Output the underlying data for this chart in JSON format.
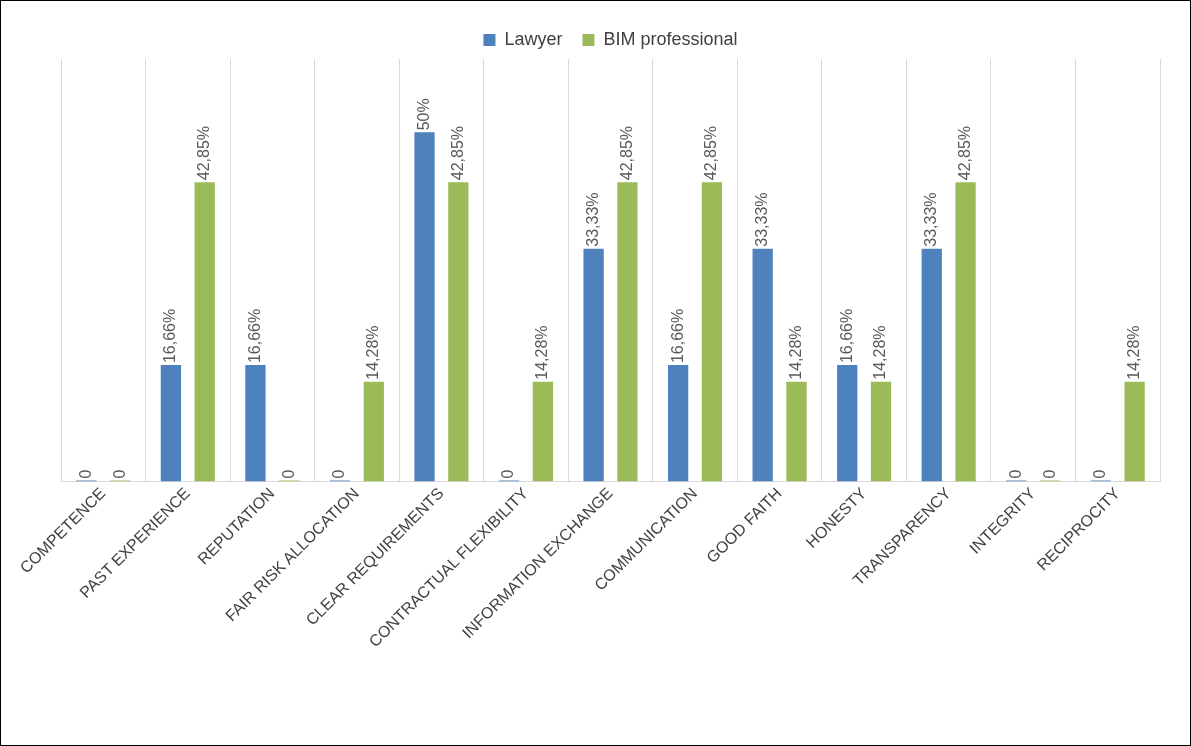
{
  "chart_data": {
    "type": "bar",
    "categories": [
      "COMPETENCE",
      "PAST EXPERIENCE",
      "REPUTATION",
      "FAIR RISK ALLOCATION",
      "CLEAR REQUIREMENTS",
      "CONTRACTUAL FLEXIBILITY",
      "INFORMATION EXCHANGE",
      "COMMUNICATION",
      "GOOD FAITH",
      "HONESTY",
      "TRANSPARENCY",
      "INTEGRITY",
      "RECIPROCITY"
    ],
    "series": [
      {
        "name": "Lawyer",
        "color": "#4f81bd",
        "values": [
          0,
          16.66,
          16.66,
          0,
          50,
          0,
          33.33,
          16.66,
          33.33,
          16.66,
          33.33,
          0,
          0
        ],
        "value_labels": [
          "0",
          "16,66%",
          "16,66%",
          "0",
          "50%",
          "0",
          "33,33%",
          "16,66%",
          "33,33%",
          "16,66%",
          "33,33%",
          "0",
          "0"
        ]
      },
      {
        "name": "BIM professional",
        "color": "#9bbb59",
        "values": [
          0,
          42.85,
          0,
          14.28,
          42.85,
          14.28,
          42.85,
          42.85,
          14.28,
          14.28,
          42.85,
          0,
          14.28
        ],
        "value_labels": [
          "0",
          "42,85%",
          "0",
          "14,28%",
          "42,85%",
          "14,28%",
          "42,85%",
          "42,85%",
          "14,28%",
          "14,28%",
          "42,85%",
          "0",
          "14,28%"
        ]
      }
    ],
    "grid": "x",
    "legend": "top"
  }
}
